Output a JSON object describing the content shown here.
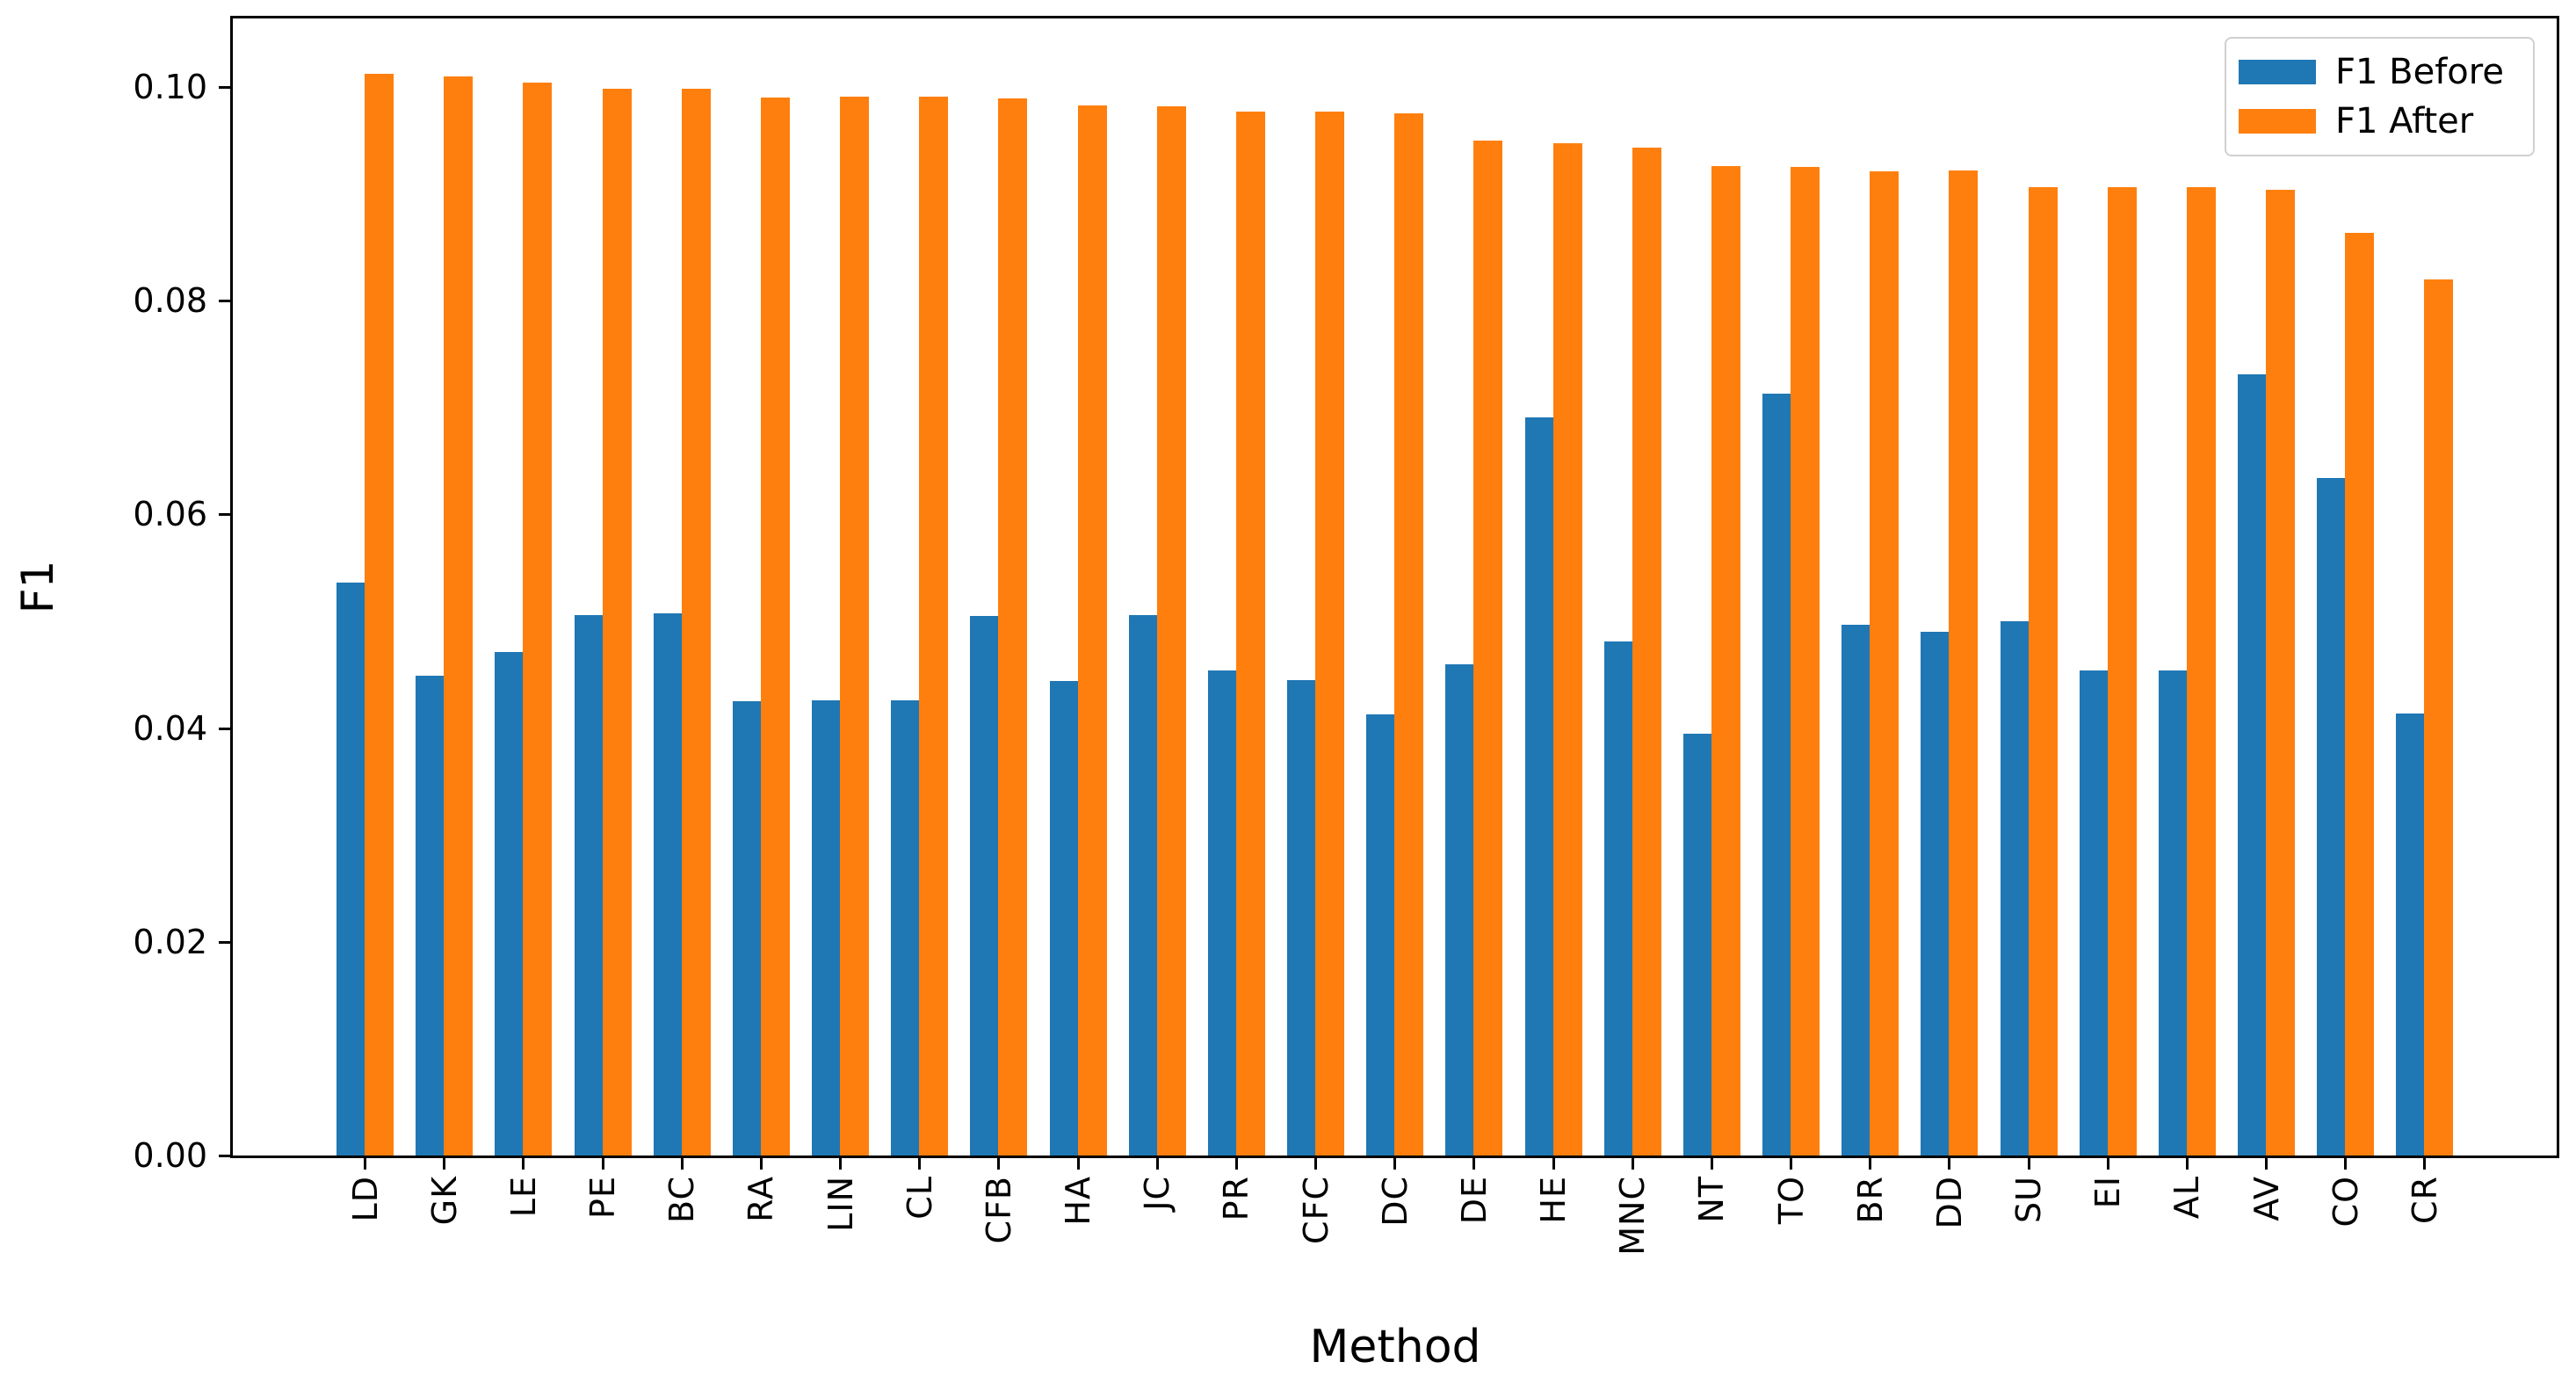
{
  "chart_data": {
    "type": "bar",
    "title": "",
    "xlabel": "Method",
    "ylabel": "F1",
    "categories": [
      "LD",
      "GK",
      "LE",
      "PE",
      "BC",
      "RA",
      "LIN",
      "CL",
      "CFB",
      "HA",
      "JC",
      "PR",
      "CFC",
      "DC",
      "DE",
      "HE",
      "MNC",
      "NT",
      "TO",
      "BR",
      "DD",
      "SU",
      "EI",
      "AL",
      "AV",
      "CO",
      "CR"
    ],
    "series": [
      {
        "name": "F1 Before",
        "color": "#1f77b4",
        "values": [
          0.0536,
          0.0449,
          0.0471,
          0.0506,
          0.0507,
          0.0425,
          0.0426,
          0.0426,
          0.0505,
          0.0444,
          0.0506,
          0.0454,
          0.0445,
          0.0413,
          0.046,
          0.0691,
          0.0481,
          0.0395,
          0.0713,
          0.0497,
          0.049,
          0.05,
          0.0454,
          0.0454,
          0.0731,
          0.0634,
          0.0414
        ]
      },
      {
        "name": "F1 After",
        "color": "#ff7f0e",
        "values": [
          0.1012,
          0.101,
          0.1004,
          0.0998,
          0.0998,
          0.099,
          0.0991,
          0.0991,
          0.0989,
          0.0983,
          0.0982,
          0.0977,
          0.0977,
          0.0975,
          0.095,
          0.0947,
          0.0943,
          0.0926,
          0.0925,
          0.0921,
          0.0922,
          0.0906,
          0.0906,
          0.0906,
          0.0904,
          0.0863,
          0.082
        ]
      }
    ],
    "yticks": [
      {
        "label": "0.00",
        "value": 0.0
      },
      {
        "label": "0.02",
        "value": 0.02
      },
      {
        "label": "0.04",
        "value": 0.04
      },
      {
        "label": "0.06",
        "value": 0.06
      },
      {
        "label": "0.08",
        "value": 0.08
      },
      {
        "label": "0.10",
        "value": 0.1
      }
    ],
    "ylim": [
      0,
      0.1064
    ],
    "grid": false,
    "legend_position": "upper right",
    "tick_label_rotation": 90,
    "background_color": "#ffffff",
    "spine_color": "#000000",
    "text_color": "#000000"
  }
}
